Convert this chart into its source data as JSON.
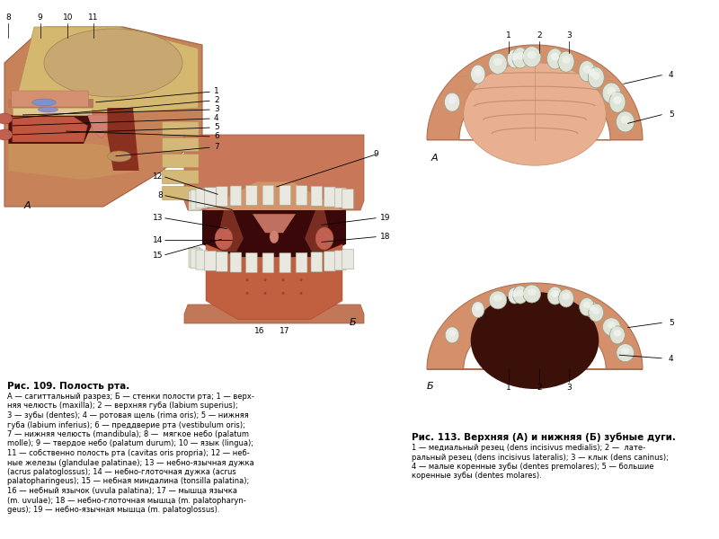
{
  "background_color": "#ffffff",
  "fig109_title": "Рис. 109. Полость рта.",
  "fig109_caption_line1": "А — сагиттальный разрез; Б — стенки полости рта; 1 — верх-",
  "fig109_caption_line2": "няя челюсть (maxilla); 2 — верхняя губа (labium superius);",
  "fig109_caption_line3": "3 — зубы (dentes); 4 — ротовая щель (rima oris); 5 — нижняя",
  "fig109_caption_line4": "губа (labium inferius); 6 — преддверие рта (vestibulum oris);",
  "fig109_caption_line5": "7 — нижняя челюсть (mandibula); 8 —  мягкое небо (palatum",
  "fig109_caption_line6": "molle); 9 — твердое небо (palatum durum); 10 — язык (lingua);",
  "fig109_caption_line7": "11 — собственно полость рта (cavitas oris propria); 12 — неб-",
  "fig109_caption_line8": "ные железы (glandulae palatinae); 13 — небно-язычная дужка",
  "fig109_caption_line9": "(acrus palatoglossus); 14 — небно-глоточная дужка (acrus",
  "fig109_caption_line10": "palatopharingeus); 15 — небная миндалина (tonsilla palatina);",
  "fig109_caption_line11": "16 — небный язычок (uvula palatina); 17 — мышца язычка",
  "fig109_caption_line12": "(m. uvulae); 18 — небно-глоточная мышца (m. palatopharyn-",
  "fig109_caption_line13": "geus); 19 — небно-язычная мышца (m. palatoglossus).",
  "fig113_title": "Рис. 113. Верхняя (А) и нижняя (Б) зубные дуги.",
  "fig113_caption_line1": "1 — медиальный резец (dens incisivus medialis); 2 —  лате-",
  "fig113_caption_line2": "ральный резец (dens incisivus lateralis); 3 — клык (dens caninus);",
  "fig113_caption_line3": "4 — малые коренные зубы (dentes premolares); 5 — большие",
  "fig113_caption_line4": "коренные зубы (dentes molares)."
}
